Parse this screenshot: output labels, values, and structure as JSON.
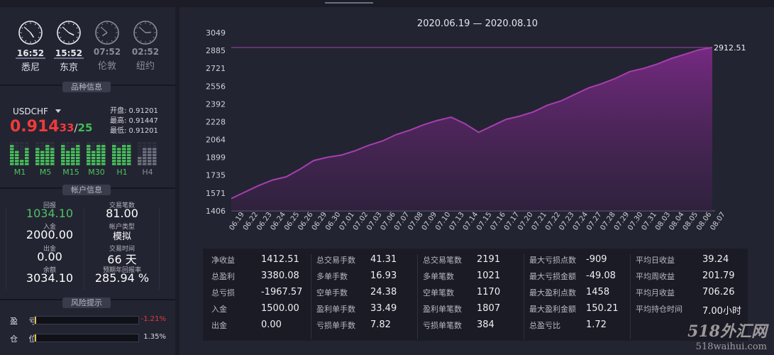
{
  "clocks": [
    {
      "time": "16:52",
      "city": "悉尼",
      "active": true,
      "h": 4,
      "m": 52
    },
    {
      "time": "15:52",
      "city": "东京",
      "active": true,
      "h": 3,
      "m": 52
    },
    {
      "time": "07:52",
      "city": "伦敦",
      "active": false,
      "h": 7,
      "m": 52
    },
    {
      "time": "02:52",
      "city": "纽约",
      "active": false,
      "h": 2,
      "m": 52
    }
  ],
  "sections": {
    "symbol_info": "品种信息",
    "account_info": "帐户信息",
    "risk": "风险提示"
  },
  "symbol": {
    "name": "USDCHF",
    "price_main": "0.914",
    "price_pips": "33",
    "price_sep": "/",
    "spread": "25",
    "open": "开盘: 0.91201",
    "high": "最高: 0.91447",
    "low": "最低: 0.91201",
    "timeframes": [
      {
        "label": "M1",
        "active": true
      },
      {
        "label": "M5",
        "active": true
      },
      {
        "label": "M15",
        "active": true
      },
      {
        "label": "M30",
        "active": true
      },
      {
        "label": "H1",
        "active": true
      },
      {
        "label": "H4",
        "active": false
      }
    ]
  },
  "account": {
    "return_label": "回报",
    "return_value": "1034.10",
    "trades_label": "交易笔数",
    "trades_value": "81.00",
    "deposit_label": "入金",
    "deposit_value": "2000.00",
    "acct_type_label": "帐户类型",
    "acct_type_value": "模拟",
    "withdraw_label": "出金",
    "withdraw_value": "0.00",
    "trade_time_label": "交易时间",
    "trade_time_value": "66 天",
    "balance_label": "余额",
    "balance_value": "3034.10",
    "annual_label": "预期年回报率",
    "annual_value": "285.94 %"
  },
  "risk": {
    "pnl_label": "盈 亏",
    "pnl_value": "-1.21%",
    "pnl_fraction": 0.01,
    "position_label": "仓 位",
    "position_value": "1.35%",
    "position_fraction": 0.0135
  },
  "chart_data": {
    "type": "area",
    "title": "2020.06.19 — 2020.08.10",
    "y_ticks": [
      "3049",
      "2885",
      "2721",
      "2556",
      "2392",
      "2228",
      "2064",
      "1899",
      "1735",
      "1571",
      "1406"
    ],
    "ylim": [
      1406,
      3049
    ],
    "x": [
      "06.19",
      "06.22",
      "06.23",
      "06.24",
      "06.25",
      "06.26",
      "06.29",
      "06.30",
      "07.01",
      "07.02",
      "07.03",
      "07.06",
      "07.07",
      "07.08",
      "07.09",
      "07.10",
      "07.13",
      "07.14",
      "07.15",
      "07.16",
      "07.17",
      "07.20",
      "07.21",
      "07.22",
      "07.23",
      "07.24",
      "07.27",
      "07.28",
      "07.29",
      "07.30",
      "07.31",
      "08.03",
      "08.04",
      "08.05",
      "08.06",
      "08.07"
    ],
    "values": [
      1520,
      1580,
      1640,
      1690,
      1720,
      1790,
      1870,
      1900,
      1920,
      1960,
      2010,
      2050,
      2110,
      2150,
      2200,
      2240,
      2270,
      2210,
      2130,
      2190,
      2250,
      2280,
      2320,
      2380,
      2420,
      2480,
      2540,
      2580,
      2630,
      2690,
      2720,
      2760,
      2810,
      2850,
      2890,
      2912.51
    ],
    "last_label": "2912.51",
    "series_color": "#a63fae"
  },
  "stats": [
    [
      [
        "净收益",
        "1412.51"
      ],
      [
        "总盈利",
        "3380.08"
      ],
      [
        "总亏损",
        "-1967.57"
      ],
      [
        "入金",
        "1500.00"
      ],
      [
        "出金",
        "0.00"
      ]
    ],
    [
      [
        "总交易手数",
        "41.31"
      ],
      [
        "多单手数",
        "16.93"
      ],
      [
        "空单手数",
        "24.38"
      ],
      [
        "盈利单手数",
        "33.49"
      ],
      [
        "亏损单手数",
        "7.82"
      ]
    ],
    [
      [
        "总交易笔数",
        "2191"
      ],
      [
        "多单笔数",
        "1021"
      ],
      [
        "空单笔数",
        "1170"
      ],
      [
        "盈利单笔数",
        "1807"
      ],
      [
        "亏损单笔数",
        "384"
      ]
    ],
    [
      [
        "最大亏损点数",
        "-909"
      ],
      [
        "最大亏损金额",
        "-49.08"
      ],
      [
        "最大盈利点数",
        "1458"
      ],
      [
        "最大盈利金额",
        "150.21"
      ],
      [
        "总盈亏比",
        "1.72"
      ]
    ],
    [
      [
        "平均日收益",
        "39.24"
      ],
      [
        "平均周收益",
        "201.79"
      ],
      [
        "平均月收益",
        "706.26"
      ],
      [
        "平均持仓时间",
        "7.00小时"
      ],
      [
        "",
        ""
      ]
    ]
  ],
  "watermark": {
    "line1": "518外汇网",
    "line2": "518waihui.com"
  }
}
